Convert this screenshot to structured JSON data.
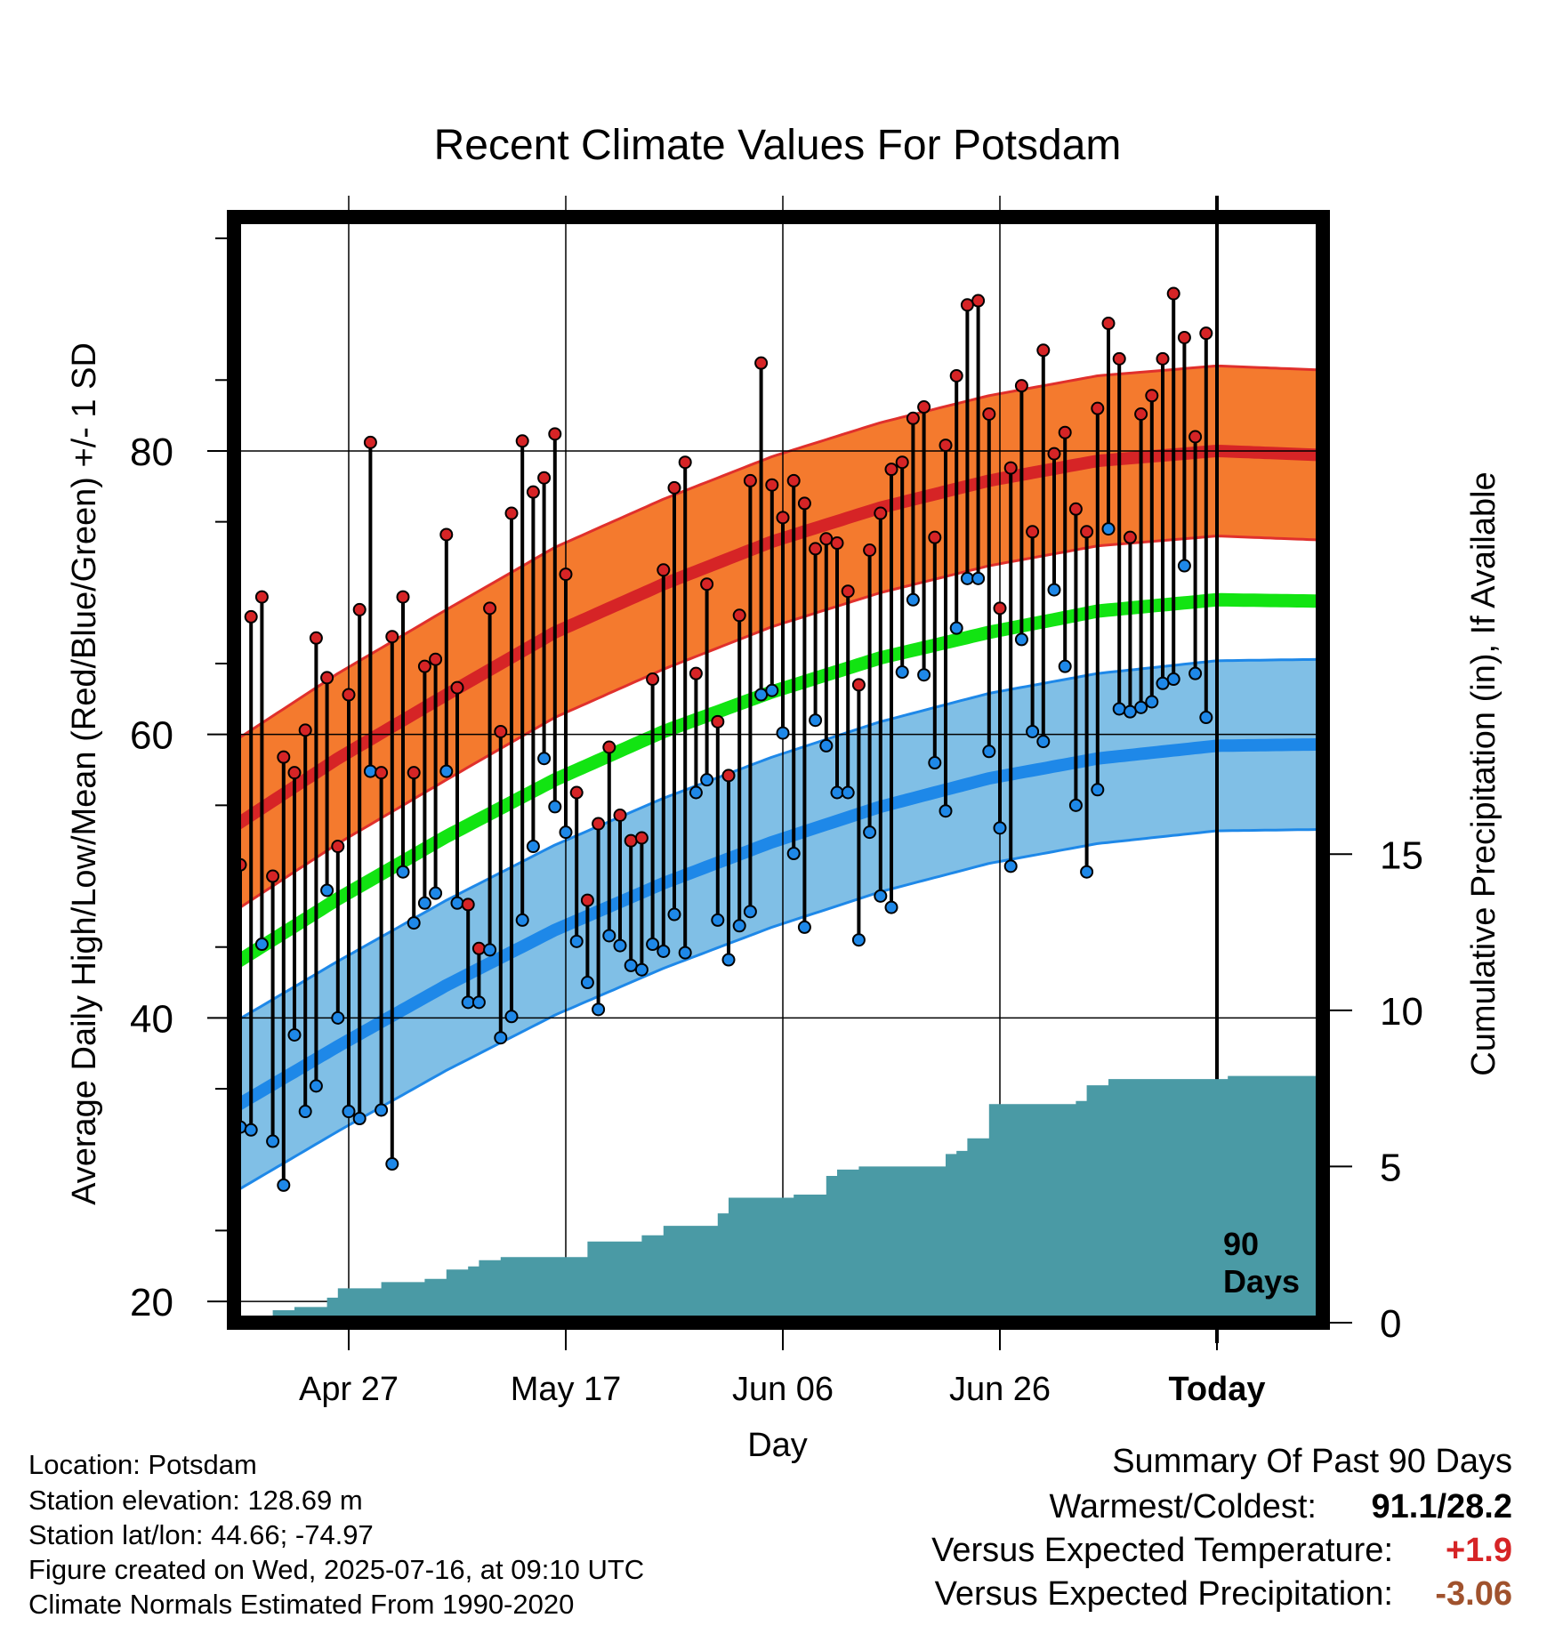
{
  "chart_data": {
    "type": "line",
    "title": "Recent Climate Values For Potsdam",
    "xlabel": "Day",
    "ylabel": "Average Daily High/Low/Mean (Red/Blue/Green) +/- 1 SD",
    "y2label": "Cumulative Precipitation (in), If Available",
    "ylim": [
      18.5,
      96.5
    ],
    "y2lim": [
      0,
      35.4
    ],
    "y_ticks": [
      20,
      40,
      60,
      80
    ],
    "y2_ticks": [
      0,
      5,
      10,
      15
    ],
    "x_ticks": [
      "Apr 27",
      "May 17",
      "Jun 06",
      "Jun 26",
      "Today"
    ],
    "grid": true,
    "x_note": "90 Days",
    "start_date": "2025-04-17",
    "colors": {
      "high": "#d62426",
      "high_band": "#f47a2e",
      "high_band_edge": "#e0302c",
      "low": "#1e88e8",
      "low_band": "#80bfe6",
      "low_band_edge": "#1e88e8",
      "mean": "#12e412",
      "precip": "#4a9aa5",
      "obs_high_dot": "#d62426",
      "obs_low_dot": "#1e88e8"
    },
    "normal_high": [
      {
        "date": "2025-04-16",
        "value": 53.3
      },
      {
        "date": "2025-04-26",
        "value": 58.3
      },
      {
        "date": "2025-05-06",
        "value": 62.8
      },
      {
        "date": "2025-05-16",
        "value": 67.2
      },
      {
        "date": "2025-05-26",
        "value": 70.6
      },
      {
        "date": "2025-06-05",
        "value": 73.6
      },
      {
        "date": "2025-06-15",
        "value": 76.0
      },
      {
        "date": "2025-06-25",
        "value": 77.9
      },
      {
        "date": "2025-07-05",
        "value": 79.3
      },
      {
        "date": "2025-07-16",
        "value": 80.0
      },
      {
        "date": "2025-07-26",
        "value": 79.7
      }
    ],
    "normal_high_sd": 6.0,
    "normal_mean": [
      {
        "date": "2025-04-16",
        "value": 43.6
      },
      {
        "date": "2025-04-26",
        "value": 48.4
      },
      {
        "date": "2025-05-06",
        "value": 52.8
      },
      {
        "date": "2025-05-16",
        "value": 56.8
      },
      {
        "date": "2025-05-26",
        "value": 60.2
      },
      {
        "date": "2025-06-05",
        "value": 63.0
      },
      {
        "date": "2025-06-15",
        "value": 65.4
      },
      {
        "date": "2025-06-25",
        "value": 67.2
      },
      {
        "date": "2025-07-05",
        "value": 68.7
      },
      {
        "date": "2025-07-16",
        "value": 69.5
      },
      {
        "date": "2025-07-26",
        "value": 69.4
      }
    ],
    "normal_low": [
      {
        "date": "2025-04-16",
        "value": 33.5
      },
      {
        "date": "2025-04-26",
        "value": 38.0
      },
      {
        "date": "2025-05-06",
        "value": 42.3
      },
      {
        "date": "2025-05-16",
        "value": 46.2
      },
      {
        "date": "2025-05-26",
        "value": 49.5
      },
      {
        "date": "2025-06-05",
        "value": 52.4
      },
      {
        "date": "2025-06-15",
        "value": 54.9
      },
      {
        "date": "2025-06-25",
        "value": 56.9
      },
      {
        "date": "2025-07-05",
        "value": 58.3
      },
      {
        "date": "2025-07-16",
        "value": 59.2
      },
      {
        "date": "2025-07-26",
        "value": 59.3
      }
    ],
    "normal_low_sd": 6.0,
    "series": [
      {
        "name": "High",
        "values": [
          50.8,
          68.3,
          69.7,
          50.0,
          58.4,
          57.3,
          60.3,
          66.8,
          64.0,
          52.1,
          62.8,
          68.8,
          80.6,
          57.3,
          66.9,
          69.7,
          57.3,
          64.8,
          65.3,
          74.1,
          63.3,
          48.0,
          44.9,
          68.9,
          60.2,
          75.6,
          80.7,
          77.1,
          78.1,
          81.2,
          71.3,
          55.9,
          48.3,
          53.7,
          59.1,
          54.3,
          52.5,
          52.7,
          63.9,
          71.6,
          77.4,
          79.2,
          64.3,
          70.6,
          60.9,
          57.1,
          68.4,
          77.9,
          86.2,
          77.6,
          75.3,
          77.9,
          76.3,
          73.1,
          73.8,
          73.5,
          70.1,
          63.5,
          73.0,
          75.6,
          78.7,
          79.2,
          82.3,
          83.1,
          73.9,
          80.4,
          85.3,
          90.3,
          90.6,
          82.6,
          68.9,
          78.8,
          84.6,
          74.3,
          87.1,
          79.8,
          81.3,
          75.9,
          74.3,
          83.0,
          89.0,
          86.5,
          73.9,
          82.6,
          83.9,
          86.5,
          91.1,
          88.0,
          81.0,
          88.3
        ]
      },
      {
        "name": "Low",
        "values": [
          32.3,
          32.1,
          45.2,
          31.3,
          28.2,
          38.8,
          33.4,
          35.2,
          49.0,
          40.0,
          33.4,
          32.9,
          57.4,
          33.5,
          29.7,
          50.3,
          46.7,
          48.1,
          48.8,
          57.4,
          48.1,
          41.1,
          41.1,
          44.8,
          38.6,
          40.1,
          46.9,
          52.1,
          58.3,
          54.9,
          53.1,
          45.4,
          42.5,
          40.6,
          45.8,
          45.1,
          43.7,
          43.4,
          45.2,
          44.7,
          47.3,
          44.6,
          55.9,
          56.8,
          46.9,
          44.1,
          46.5,
          47.5,
          62.8,
          63.1,
          60.1,
          51.6,
          46.4,
          61.0,
          59.2,
          55.9,
          55.9,
          45.5,
          53.1,
          48.6,
          47.8,
          64.4,
          69.5,
          64.2,
          58.0,
          54.6,
          67.5,
          71.0,
          71.0,
          58.8,
          53.4,
          50.7,
          66.7,
          60.2,
          59.5,
          70.2,
          64.8,
          55.0,
          50.3,
          56.1,
          74.5,
          61.8,
          61.6,
          61.9,
          62.3,
          63.6,
          63.9,
          71.9,
          64.3,
          61.2
        ]
      }
    ],
    "precip_cumulative": [
      {
        "date": "2025-04-17",
        "value": 0.0
      },
      {
        "date": "2025-04-19",
        "value": 0.1
      },
      {
        "date": "2025-04-20",
        "value": 0.4
      },
      {
        "date": "2025-04-21",
        "value": 0.4
      },
      {
        "date": "2025-04-22",
        "value": 0.5
      },
      {
        "date": "2025-04-23",
        "value": 0.5
      },
      {
        "date": "2025-04-24",
        "value": 0.5
      },
      {
        "date": "2025-04-25",
        "value": 0.8
      },
      {
        "date": "2025-04-26",
        "value": 1.1
      },
      {
        "date": "2025-04-27",
        "value": 1.1
      },
      {
        "date": "2025-04-29",
        "value": 1.1
      },
      {
        "date": "2025-04-30",
        "value": 1.3
      },
      {
        "date": "2025-05-01",
        "value": 1.3
      },
      {
        "date": "2025-05-04",
        "value": 1.4
      },
      {
        "date": "2025-05-06",
        "value": 1.7
      },
      {
        "date": "2025-05-08",
        "value": 1.8
      },
      {
        "date": "2025-05-09",
        "value": 2.0
      },
      {
        "date": "2025-05-11",
        "value": 2.1
      },
      {
        "date": "2025-05-17",
        "value": 2.1
      },
      {
        "date": "2025-05-19",
        "value": 2.6
      },
      {
        "date": "2025-05-22",
        "value": 2.6
      },
      {
        "date": "2025-05-24",
        "value": 2.8
      },
      {
        "date": "2025-05-26",
        "value": 3.1
      },
      {
        "date": "2025-05-30",
        "value": 3.1
      },
      {
        "date": "2025-05-31",
        "value": 3.5
      },
      {
        "date": "2025-06-01",
        "value": 4.0
      },
      {
        "date": "2025-06-07",
        "value": 4.1
      },
      {
        "date": "2025-06-09",
        "value": 4.1
      },
      {
        "date": "2025-06-10",
        "value": 4.7
      },
      {
        "date": "2025-06-11",
        "value": 4.9
      },
      {
        "date": "2025-06-13",
        "value": 5.0
      },
      {
        "date": "2025-06-20",
        "value": 5.0
      },
      {
        "date": "2025-06-21",
        "value": 5.4
      },
      {
        "date": "2025-06-22",
        "value": 5.5
      },
      {
        "date": "2025-06-23",
        "value": 5.9
      },
      {
        "date": "2025-06-24",
        "value": 5.9
      },
      {
        "date": "2025-06-25",
        "value": 7.0
      },
      {
        "date": "2025-07-03",
        "value": 7.1
      },
      {
        "date": "2025-07-04",
        "value": 7.6
      },
      {
        "date": "2025-07-05",
        "value": 7.6
      },
      {
        "date": "2025-07-06",
        "value": 7.8
      },
      {
        "date": "2025-07-17",
        "value": 7.9
      },
      {
        "date": "2025-07-26",
        "value": 7.9
      }
    ]
  },
  "footer": {
    "location": "Location: Potsdam",
    "elevation": "Station elevation: 128.69 m",
    "latlon": "Station lat/lon: 44.66; -74.97",
    "created": "Figure created on Wed, 2025-07-16, at 09:10 UTC",
    "normals": "Climate Normals Estimated From 1990-2020"
  },
  "summary": {
    "title": "Summary Of Past 90 Days",
    "warmest_coldest_label": "Warmest/Coldest:",
    "warmest_coldest_value": "91.1/28.2",
    "temp_label": "Versus Expected Temperature:",
    "temp_value": "+1.9",
    "temp_color": "#d62426",
    "precip_label": "Versus Expected Precipitation:",
    "precip_value": "-3.06",
    "precip_color": "#a0522d"
  }
}
